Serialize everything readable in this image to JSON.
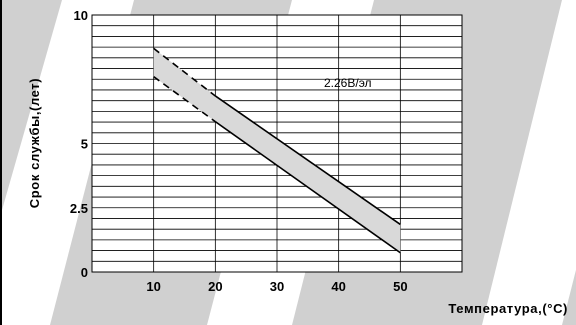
{
  "chart_data": {
    "type": "area",
    "title": "",
    "xlabel": "Температура,(°C)",
    "ylabel": "Срок службы,(лет)",
    "xlim": [
      0,
      60
    ],
    "ylim": [
      0,
      10
    ],
    "x_ticks": [
      "10",
      "20",
      "30",
      "40",
      "50"
    ],
    "y_ticks": [
      "0",
      "2.5",
      "5",
      "10"
    ],
    "y_tick_values": [
      0,
      2.5,
      5,
      10
    ],
    "grid": true,
    "annotation": "2.26В/эл",
    "band": {
      "name": "2.26В/эл",
      "color": "#d9d9d9",
      "upper_solid": {
        "x": [
          20,
          50
        ],
        "y": [
          6.85,
          1.85
        ]
      },
      "lower_solid": {
        "x": [
          20,
          50
        ],
        "y": [
          5.85,
          0.75
        ]
      },
      "upper_dashed": {
        "x": [
          10,
          20
        ],
        "y": [
          8.7,
          6.85
        ]
      },
      "lower_dashed": {
        "x": [
          10,
          20
        ],
        "y": [
          7.6,
          5.85
        ]
      }
    }
  }
}
